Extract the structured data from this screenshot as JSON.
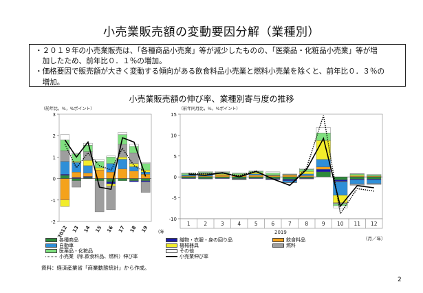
{
  "title": "小売業販売額の変動要因分解（業種別）",
  "summary": {
    "line1": "・２０１９年の小売業販売は、「各種商品小売業」等が減少したものの、「医薬品・化粧品小売業」等が増",
    "line2": "　加したため、前年比０．１％の増加。",
    "line3": "・価格要因で販売額が大きく変動する傾向がある飲食料品小売業と燃料小売業を除くと、前年比０．３％の",
    "line4": "　増加。"
  },
  "chart_title": "小売業販売額の伸び率、業種別寄与度の推移",
  "colors": {
    "各種商品": "#2e8b3a",
    "織物・衣服・身の回り品": "#1a1aa6",
    "飲食料品": "#f4a21c",
    "自動車": "#2f8fd8",
    "機械器具": "#f2ec2b",
    "燃料": "#9e9e9e",
    "医薬品・化粧品": "#7fe07f",
    "その他": "#ffffff"
  },
  "legend": {
    "items": [
      "各種商品",
      "織物・衣服・身の回り品",
      "飲食料品",
      "自動車",
      "機械器具",
      "燃料",
      "医薬品・化粧品",
      "その他"
    ],
    "dotted_label": "小売業（除.飲食料品、燃料）伸び率",
    "solid_label": "小売業伸び率"
  },
  "source": "資料：経済産業省「商業動態統計」から作成。",
  "page_number": "2",
  "chart_data": [
    {
      "type": "bar",
      "subtype": "stacked-bar-with-lines",
      "ylabel": "（前年比，%，%ポイント）",
      "xunit": "（年）",
      "ylim": [
        -2,
        3
      ],
      "yticks": [
        -2,
        -1,
        0,
        1,
        2,
        3
      ],
      "categories": [
        "2012",
        "13",
        "14",
        "15",
        "16",
        "17",
        "18",
        "19"
      ],
      "series": [
        {
          "name": "各種商品",
          "values": [
            0.15,
            -0.1,
            0.05,
            -0.1,
            -0.15,
            -0.1,
            -0.1,
            -0.1
          ]
        },
        {
          "name": "織物・衣服・身の回り品",
          "values": [
            0.05,
            0.05,
            0.05,
            0.0,
            -0.1,
            0.0,
            -0.05,
            -0.05
          ]
        },
        {
          "name": "飲食料品",
          "values": [
            -1.0,
            0.25,
            0.15,
            0.4,
            0.3,
            0.45,
            0.35,
            0.2
          ]
        },
        {
          "name": "自動車",
          "values": [
            0.6,
            0.45,
            0.35,
            0.0,
            0.4,
            0.45,
            0.2,
            0.1
          ]
        },
        {
          "name": "機械器具",
          "values": [
            -0.3,
            0.05,
            0.25,
            0.1,
            -0.1,
            0.1,
            0.15,
            0.1
          ]
        },
        {
          "name": "燃料",
          "values": [
            0.5,
            -0.3,
            0.4,
            -1.45,
            -1.1,
            0.6,
            0.5,
            -0.5
          ]
        },
        {
          "name": "医薬品・化粧品",
          "values": [
            0.5,
            0.35,
            0.3,
            0.3,
            0.3,
            0.45,
            0.3,
            0.3
          ]
        },
        {
          "name": "その他",
          "values": [
            0.25,
            0.05,
            0.1,
            0.1,
            0.05,
            0.1,
            0.1,
            0.05
          ]
        }
      ],
      "lines": [
        {
          "name": "小売業（除.飲食料品、燃料）伸び率",
          "style": "dotted",
          "values": [
            1.6,
            0.5,
            1.2,
            0.6,
            0.4,
            1.4,
            0.6,
            0.3
          ]
        },
        {
          "name": "小売業伸び率",
          "style": "solid",
          "values": [
            1.8,
            1.0,
            1.7,
            -0.4,
            -0.5,
            1.9,
            1.7,
            0.1
          ]
        }
      ]
    },
    {
      "type": "bar",
      "subtype": "stacked-bar-with-lines",
      "ylabel": "（前年同月比，%，%ポイント）",
      "xunit": "（月／年）",
      "year_label": "2019",
      "ylim": [
        -10,
        15
      ],
      "yticks": [
        -10,
        -5,
        0,
        5,
        10,
        15
      ],
      "categories": [
        "1",
        "2",
        "3",
        "4",
        "5",
        "6",
        "7",
        "8",
        "9",
        "10",
        "11",
        "12"
      ],
      "series": [
        {
          "name": "各種商品",
          "values": [
            -0.3,
            -0.4,
            -0.3,
            -0.4,
            -0.3,
            -0.4,
            -0.6,
            -0.3,
            1.2,
            -0.7,
            -0.5,
            -0.5
          ]
        },
        {
          "name": "織物・衣服・身の回り品",
          "values": [
            -0.1,
            -0.1,
            -0.1,
            -0.1,
            -0.1,
            -0.2,
            -0.3,
            -0.1,
            0.6,
            -0.4,
            -0.2,
            -0.2
          ]
        },
        {
          "name": "飲食料品",
          "values": [
            0.2,
            0.2,
            0.4,
            0.3,
            0.4,
            0.3,
            0.4,
            0.3,
            0.6,
            -0.1,
            0.2,
            0.2
          ]
        },
        {
          "name": "自動車",
          "values": [
            0.2,
            0.3,
            0.1,
            -0.1,
            0.3,
            0.1,
            -0.4,
            0.4,
            1.8,
            -3.2,
            -1.0,
            -0.9
          ]
        },
        {
          "name": "機械器具",
          "values": [
            0.1,
            0.2,
            0.2,
            0.2,
            0.3,
            0.1,
            0.1,
            0.6,
            4.5,
            -1.8,
            0.2,
            0.0
          ]
        },
        {
          "name": "燃料",
          "values": [
            0.0,
            0.1,
            0.0,
            -0.1,
            0.0,
            -0.1,
            -0.1,
            -0.1,
            0.0,
            -0.3,
            -0.3,
            -0.2
          ]
        },
        {
          "name": "医薬品・化粧品",
          "values": [
            0.3,
            0.3,
            0.4,
            0.3,
            0.3,
            0.4,
            0.1,
            0.5,
            1.8,
            -0.4,
            0.3,
            0.3
          ]
        },
        {
          "name": "その他",
          "values": [
            0.2,
            0.2,
            0.2,
            0.2,
            0.2,
            0.3,
            0.1,
            0.3,
            1.3,
            -0.5,
            0.1,
            0.1
          ]
        }
      ],
      "lines": [
        {
          "name": "小売業（除.飲食料品、燃料）伸び率",
          "style": "dotted",
          "values": [
            0.8,
            0.7,
            0.9,
            0.3,
            1.4,
            -0.5,
            -2.0,
            2.2,
            14.7,
            -8.8,
            -2.8,
            -3.4
          ]
        },
        {
          "name": "小売業伸び率",
          "style": "solid",
          "values": [
            0.6,
            0.4,
            1.0,
            0.0,
            1.3,
            -0.5,
            -2.0,
            1.8,
            9.2,
            -7.0,
            -2.1,
            -2.6
          ]
        }
      ]
    }
  ]
}
